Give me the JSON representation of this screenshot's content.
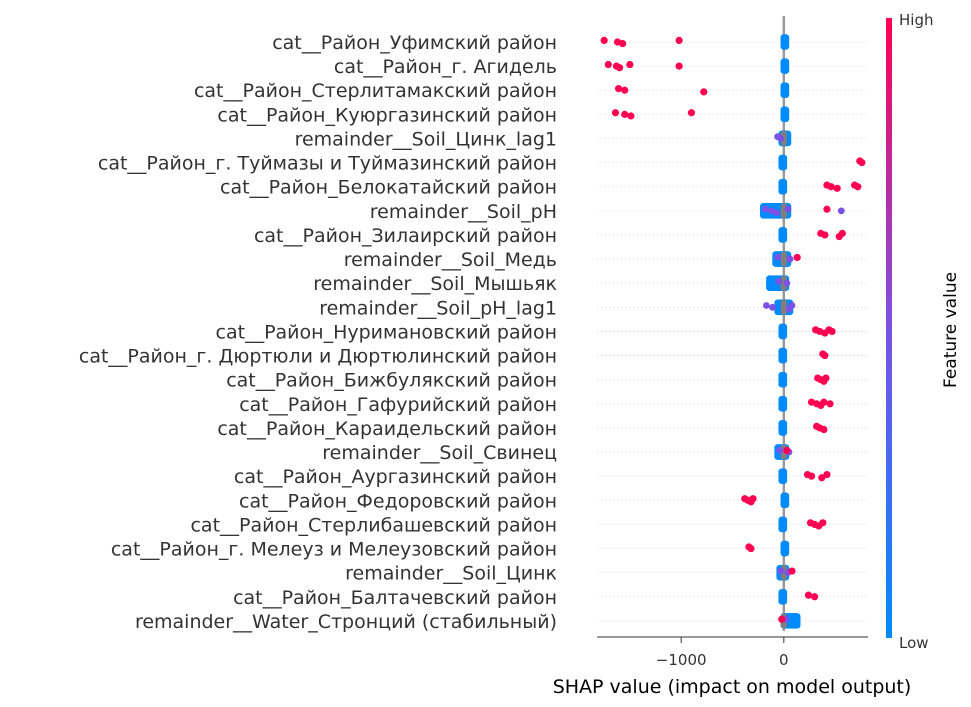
{
  "chart_data": {
    "type": "scatter",
    "subtype": "shap-beeswarm",
    "title": "",
    "xlabel": "SHAP value (impact on model output)",
    "ylabel": "",
    "xlim": [
      -1820,
      820
    ],
    "x_ticks": [
      {
        "value": -1000,
        "label": "−1000"
      },
      {
        "value": 0,
        "label": "0"
      }
    ],
    "grid": false,
    "zero_line": true,
    "colorbar": {
      "title": "Feature value",
      "high_label": "High",
      "low_label": "Low",
      "colors": {
        "low": "#008bfb",
        "mid": "#7c52e6",
        "high": "#ff0052"
      }
    },
    "features": [
      {
        "name": "cat__Район_Уфимский район",
        "high_points": [
          -1750,
          -1620,
          -1570,
          -1020
        ],
        "mid_points": [],
        "neutral_points": [],
        "low_spread": [
          0,
          20
        ]
      },
      {
        "name": "cat__Район_г. Агидель",
        "high_points": [
          -1710,
          -1630,
          -1600,
          -1500,
          -1020
        ],
        "mid_points": [],
        "neutral_points": [],
        "low_spread": [
          0,
          20
        ]
      },
      {
        "name": "cat__Район_Стерлитамакский район",
        "high_points": [
          -1610,
          -1550,
          -780
        ],
        "mid_points": [],
        "neutral_points": [],
        "low_spread": [
          0,
          20
        ]
      },
      {
        "name": "cat__Район_Куюргазинский район",
        "high_points": [
          -1640,
          -1550,
          -1490,
          -900
        ],
        "mid_points": [],
        "neutral_points": [],
        "low_spread": [
          0,
          20
        ]
      },
      {
        "name": "remainder__Soil_Цинк_lag1",
        "high_points": [],
        "mid_points": [
          -60,
          -30
        ],
        "neutral_points": [
          0
        ],
        "low_spread": [
          -20,
          40
        ]
      },
      {
        "name": "cat__Район_г. Туймазы и Туймазинский район",
        "high_points": [
          740,
          760
        ],
        "mid_points": [],
        "neutral_points": [],
        "low_spread": [
          -20,
          0
        ]
      },
      {
        "name": "cat__Район_Белокатайский район",
        "high_points": [
          420,
          460,
          520,
          690,
          720
        ],
        "mid_points": [],
        "neutral_points": [],
        "low_spread": [
          -20,
          0
        ]
      },
      {
        "name": "remainder__Soil_pH",
        "high_points": [
          420
        ],
        "mid_points": [
          -180,
          -120,
          -70,
          40,
          560
        ],
        "neutral_points": [
          0
        ],
        "low_spread": [
          -200,
          40
        ]
      },
      {
        "name": "cat__Район_Зилаирский район",
        "high_points": [
          360,
          400,
          540,
          570
        ],
        "mid_points": [],
        "neutral_points": [],
        "low_spread": [
          -20,
          0
        ]
      },
      {
        "name": "remainder__Soil_Медь",
        "high_points": [
          130
        ],
        "mid_points": [
          -60,
          60
        ],
        "neutral_points": [
          0
        ],
        "low_spread": [
          -80,
          40
        ]
      },
      {
        "name": "remainder__Soil_Мышьяк",
        "high_points": [],
        "mid_points": [
          -50,
          30
        ],
        "neutral_points": [
          0
        ],
        "low_spread": [
          -140,
          20
        ]
      },
      {
        "name": "remainder__Soil_pH_lag1",
        "high_points": [],
        "mid_points": [
          -170,
          -110,
          50,
          80
        ],
        "neutral_points": [
          0
        ],
        "low_spread": [
          -60,
          60
        ]
      },
      {
        "name": "cat__Район_Нуримановский район",
        "high_points": [
          310,
          350,
          400,
          440,
          470
        ],
        "mid_points": [],
        "neutral_points": [],
        "low_spread": [
          -20,
          0
        ]
      },
      {
        "name": "cat__Район_г. Дюртюли и Дюртюлинский район",
        "high_points": [
          380,
          400
        ],
        "mid_points": [],
        "neutral_points": [],
        "low_spread": [
          -20,
          0
        ]
      },
      {
        "name": "cat__Район_Бижбулякский район",
        "high_points": [
          330,
          360,
          390,
          410
        ],
        "mid_points": [],
        "neutral_points": [],
        "low_spread": [
          -20,
          0
        ]
      },
      {
        "name": "cat__Район_Гафурийский район",
        "high_points": [
          270,
          320,
          360,
          390,
          450
        ],
        "mid_points": [],
        "neutral_points": [],
        "low_spread": [
          -20,
          0
        ]
      },
      {
        "name": "cat__Район_Караидельский район",
        "high_points": [
          320,
          350,
          390
        ],
        "mid_points": [],
        "neutral_points": [],
        "low_spread": [
          -20,
          0
        ]
      },
      {
        "name": "remainder__Soil_Свинец",
        "high_points": [
          30
        ],
        "mid_points": [
          -40,
          50
        ],
        "neutral_points": [
          0
        ],
        "low_spread": [
          -60,
          20
        ]
      },
      {
        "name": "cat__Район_Аургазинский район",
        "high_points": [
          230,
          270,
          370,
          420
        ],
        "mid_points": [],
        "neutral_points": [],
        "low_spread": [
          -20,
          0
        ]
      },
      {
        "name": "cat__Район_Федоровский район",
        "high_points": [
          -380,
          -350,
          -320,
          -300
        ],
        "mid_points": [],
        "neutral_points": [],
        "low_spread": [
          0,
          20
        ]
      },
      {
        "name": "cat__Район_Стерлибашевский район",
        "high_points": [
          260,
          300,
          340,
          380
        ],
        "mid_points": [],
        "neutral_points": [],
        "low_spread": [
          -20,
          0
        ]
      },
      {
        "name": "cat__Район_г. Мелеуз и Мелеузовский район",
        "high_points": [
          -340,
          -320
        ],
        "mid_points": [],
        "neutral_points": [],
        "low_spread": [
          0,
          20
        ]
      },
      {
        "name": "remainder__Soil_Цинк",
        "high_points": [
          80
        ],
        "mid_points": [
          -30,
          40
        ],
        "neutral_points": [
          0
        ],
        "low_spread": [
          -40,
          20
        ]
      },
      {
        "name": "cat__Район_Балтачевский район",
        "high_points": [
          240,
          300
        ],
        "mid_points": [],
        "neutral_points": [],
        "low_spread": [
          -20,
          0
        ]
      },
      {
        "name": "remainder__Water_Стронций (стабильный)",
        "high_points": [
          -20
        ],
        "mid_points": [
          20
        ],
        "neutral_points": [
          0
        ],
        "low_spread": [
          0,
          130
        ]
      }
    ]
  }
}
